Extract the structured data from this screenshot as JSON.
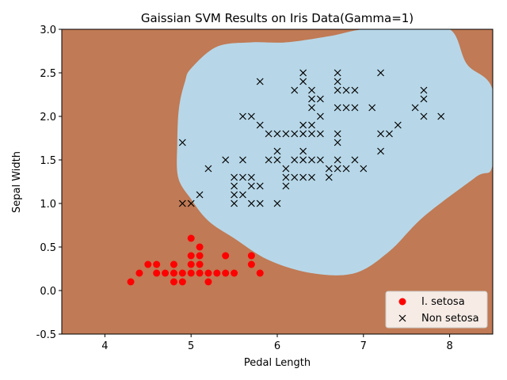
{
  "chart_data": {
    "type": "scatter",
    "title": "Gaissian SVM Results on Iris Data(Gamma=1)",
    "xlabel": "Pedal Length",
    "ylabel": "Sepal Width",
    "xlim": [
      3.5,
      8.5
    ],
    "ylim": [
      -0.5,
      3.0
    ],
    "xticks": [
      "4",
      "5",
      "6",
      "7",
      "8"
    ],
    "yticks": [
      "-0.5",
      "0.0",
      "0.5",
      "1.0",
      "1.5",
      "2.0",
      "2.5",
      "3.0"
    ],
    "xtick_values": [
      4,
      5,
      6,
      7,
      8
    ],
    "ytick_values": [
      -0.5,
      0.0,
      0.5,
      1.0,
      1.5,
      2.0,
      2.5,
      3.0
    ],
    "grid": false,
    "legend_position": "bottom-right",
    "colors": {
      "outside_region": "#c07a55",
      "decision_region": "#b7d7e8",
      "setosa": "#ff0000",
      "non_setosa": "#000000"
    },
    "decision_region_boundary": {
      "x": [
        5.0,
        5.3,
        5.7,
        6.1,
        6.6,
        7.0,
        7.5,
        8.0,
        8.2,
        8.5,
        8.5,
        8.3,
        7.7,
        7.3,
        6.9,
        6.4,
        5.9,
        5.5,
        5.2,
        5.0,
        4.85,
        4.84,
        4.86,
        4.93
      ],
      "y": [
        2.55,
        2.8,
        2.85,
        2.85,
        2.92,
        3.0,
        3.0,
        3.0,
        2.6,
        2.3,
        1.45,
        1.3,
        0.85,
        0.45,
        0.2,
        0.2,
        0.35,
        0.6,
        0.8,
        1.05,
        1.3,
        1.7,
        2.1,
        2.4
      ]
    },
    "series": [
      {
        "name": "I. setosa",
        "marker": "o",
        "points": [
          [
            4.3,
            0.1
          ],
          [
            4.4,
            0.2
          ],
          [
            4.5,
            0.3
          ],
          [
            4.6,
            0.2
          ],
          [
            4.6,
            0.3
          ],
          [
            4.7,
            0.2
          ],
          [
            4.8,
            0.1
          ],
          [
            4.8,
            0.2
          ],
          [
            4.8,
            0.3
          ],
          [
            4.9,
            0.1
          ],
          [
            4.9,
            0.2
          ],
          [
            5.0,
            0.2
          ],
          [
            5.0,
            0.3
          ],
          [
            5.0,
            0.4
          ],
          [
            5.0,
            0.6
          ],
          [
            5.1,
            0.2
          ],
          [
            5.1,
            0.3
          ],
          [
            5.1,
            0.4
          ],
          [
            5.1,
            0.5
          ],
          [
            5.2,
            0.1
          ],
          [
            5.2,
            0.2
          ],
          [
            5.3,
            0.2
          ],
          [
            5.4,
            0.2
          ],
          [
            5.4,
            0.4
          ],
          [
            5.5,
            0.2
          ],
          [
            5.7,
            0.3
          ],
          [
            5.7,
            0.4
          ],
          [
            5.8,
            0.2
          ]
        ]
      },
      {
        "name": "Non setosa",
        "marker": "x",
        "points": [
          [
            4.9,
            1.0
          ],
          [
            4.9,
            1.7
          ],
          [
            5.0,
            1.0
          ],
          [
            5.1,
            1.1
          ],
          [
            5.2,
            1.4
          ],
          [
            5.4,
            1.5
          ],
          [
            5.5,
            1.0
          ],
          [
            5.5,
            1.1
          ],
          [
            5.5,
            1.2
          ],
          [
            5.5,
            1.3
          ],
          [
            5.6,
            1.1
          ],
          [
            5.6,
            1.3
          ],
          [
            5.6,
            1.5
          ],
          [
            5.6,
            2.0
          ],
          [
            5.7,
            1.0
          ],
          [
            5.7,
            1.2
          ],
          [
            5.7,
            1.3
          ],
          [
            5.7,
            2.0
          ],
          [
            5.8,
            1.0
          ],
          [
            5.8,
            1.2
          ],
          [
            5.8,
            1.9
          ],
          [
            5.8,
            2.4
          ],
          [
            5.9,
            1.5
          ],
          [
            5.9,
            1.8
          ],
          [
            6.0,
            1.0
          ],
          [
            6.0,
            1.5
          ],
          [
            6.0,
            1.6
          ],
          [
            6.0,
            1.8
          ],
          [
            6.1,
            1.2
          ],
          [
            6.1,
            1.3
          ],
          [
            6.1,
            1.4
          ],
          [
            6.1,
            1.8
          ],
          [
            6.2,
            1.3
          ],
          [
            6.2,
            1.5
          ],
          [
            6.2,
            1.8
          ],
          [
            6.2,
            2.3
          ],
          [
            6.3,
            1.3
          ],
          [
            6.3,
            1.5
          ],
          [
            6.3,
            1.6
          ],
          [
            6.3,
            1.8
          ],
          [
            6.3,
            1.9
          ],
          [
            6.3,
            2.4
          ],
          [
            6.3,
            2.5
          ],
          [
            6.4,
            1.3
          ],
          [
            6.4,
            1.5
          ],
          [
            6.4,
            1.8
          ],
          [
            6.4,
            1.9
          ],
          [
            6.4,
            2.1
          ],
          [
            6.4,
            2.2
          ],
          [
            6.4,
            2.3
          ],
          [
            6.5,
            1.5
          ],
          [
            6.5,
            1.8
          ],
          [
            6.5,
            2.0
          ],
          [
            6.5,
            2.2
          ],
          [
            6.6,
            1.3
          ],
          [
            6.6,
            1.4
          ],
          [
            6.7,
            1.4
          ],
          [
            6.7,
            1.5
          ],
          [
            6.7,
            1.7
          ],
          [
            6.7,
            1.8
          ],
          [
            6.7,
            2.1
          ],
          [
            6.7,
            2.3
          ],
          [
            6.7,
            2.4
          ],
          [
            6.7,
            2.5
          ],
          [
            6.8,
            1.4
          ],
          [
            6.8,
            2.1
          ],
          [
            6.8,
            2.3
          ],
          [
            6.9,
            1.5
          ],
          [
            6.9,
            2.1
          ],
          [
            6.9,
            2.3
          ],
          [
            7.0,
            1.4
          ],
          [
            7.1,
            2.1
          ],
          [
            7.2,
            1.6
          ],
          [
            7.2,
            1.8
          ],
          [
            7.2,
            2.5
          ],
          [
            7.3,
            1.8
          ],
          [
            7.4,
            1.9
          ],
          [
            7.6,
            2.1
          ],
          [
            7.7,
            2.0
          ],
          [
            7.7,
            2.2
          ],
          [
            7.7,
            2.3
          ],
          [
            7.9,
            2.0
          ]
        ]
      }
    ]
  }
}
